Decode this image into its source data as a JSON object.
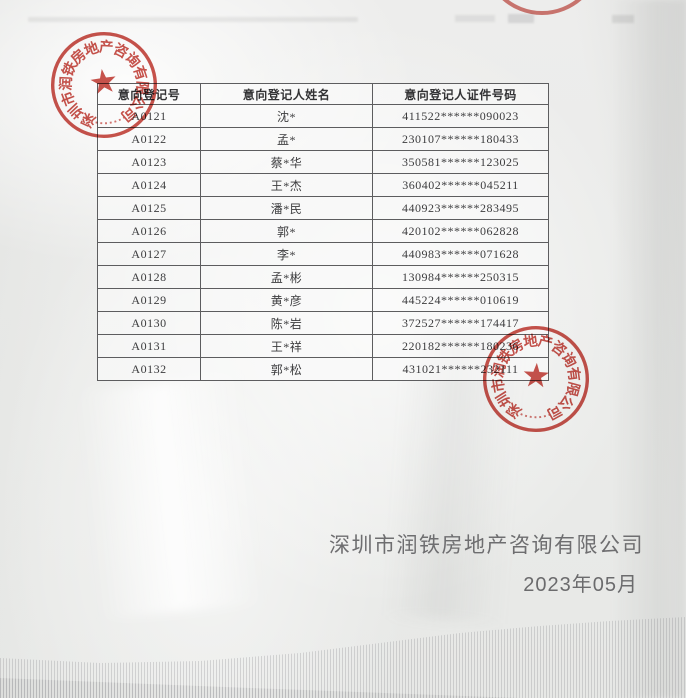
{
  "page": {
    "table": {
      "headers": [
        "意向登记号",
        "意向登记人姓名",
        "意向登记人证件号码"
      ],
      "rows": [
        {
          "id": "A0121",
          "name": "沈*",
          "cert": "411522******090023"
        },
        {
          "id": "A0122",
          "name": "孟*",
          "cert": "230107******180433"
        },
        {
          "id": "A0123",
          "name": "蔡*华",
          "cert": "350581******123025"
        },
        {
          "id": "A0124",
          "name": "王*杰",
          "cert": "360402******045211"
        },
        {
          "id": "A0125",
          "name": "潘*民",
          "cert": "440923******283495"
        },
        {
          "id": "A0126",
          "name": "郭*",
          "cert": "420102******062828"
        },
        {
          "id": "A0127",
          "name": "李*",
          "cert": "440983******071628"
        },
        {
          "id": "A0128",
          "name": "孟*彬",
          "cert": "130984******250315"
        },
        {
          "id": "A0129",
          "name": "黄*彦",
          "cert": "445224******010619"
        },
        {
          "id": "A0130",
          "name": "陈*岩",
          "cert": "372527******174417"
        },
        {
          "id": "A0131",
          "name": "王*祥",
          "cert": "220182******180236"
        },
        {
          "id": "A0132",
          "name": "郭*松",
          "cert": "431021******232111"
        }
      ]
    },
    "footer": {
      "company": "深圳市润铁房地产咨询有限公司",
      "date": "2023年05月"
    },
    "stamp": {
      "text": "深圳市润铁房地产咨询有限公司",
      "color": "#c5443c"
    }
  }
}
